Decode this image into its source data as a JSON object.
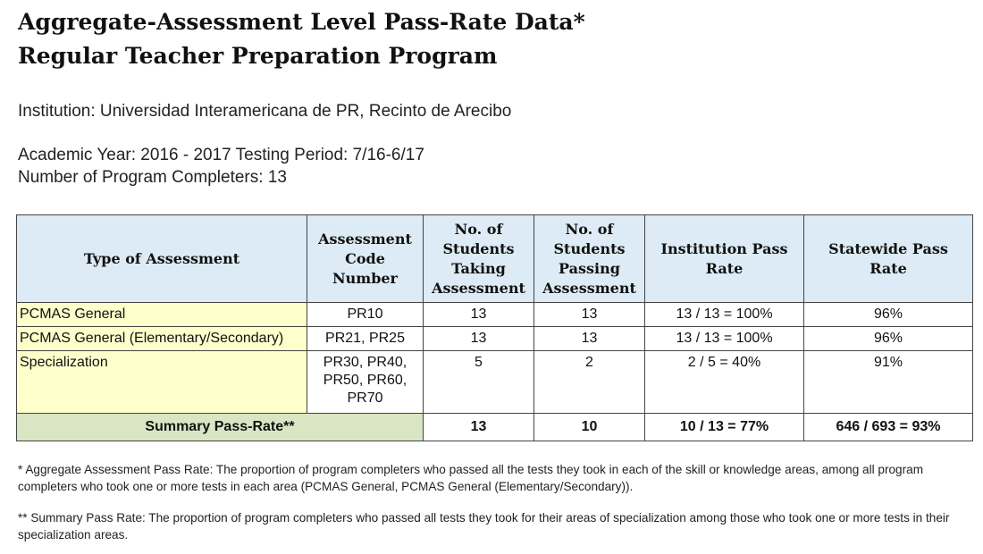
{
  "title": {
    "line1": "Aggregate-Assessment Level Pass-Rate Data*",
    "line2": "Regular Teacher Preparation Program"
  },
  "institution": "Institution: Universidad Interamericana de PR, Recinto de Arecibo",
  "academic_year": "Academic Year: 2016 - 2017 Testing Period: 7/16-6/17",
  "completers": "Number of Program Completers: 13",
  "table": {
    "headers": [
      "Type of Assessment",
      "Assessment Code Number",
      "No. of Students Taking Assessment",
      "No. of Students Passing Assessment",
      "Institution Pass Rate",
      "Statewide Pass Rate"
    ],
    "rows": [
      {
        "type": "PCMAS General",
        "code": "PR10",
        "taking": "13",
        "passing": "13",
        "inst_rate": "13 / 13 = 100%",
        "state_rate": "96%"
      },
      {
        "type": "PCMAS General (Elementary/Secondary)",
        "code": "PR21, PR25",
        "taking": "13",
        "passing": "13",
        "inst_rate": "13 / 13 = 100%",
        "state_rate": "96%"
      },
      {
        "type": "Specialization",
        "code": "PR30, PR40, PR50, PR60, PR70",
        "taking": "5",
        "passing": "2",
        "inst_rate": "2 / 5 = 40%",
        "state_rate": "91%"
      }
    ],
    "summary": {
      "label": "Summary Pass-Rate**",
      "taking": "13",
      "passing": "10",
      "inst_rate": "10 / 13 = 77%",
      "state_rate": "646 / 693 = 93%"
    }
  },
  "notes": {
    "note1": "* Aggregate Assessment Pass Rate: The proportion of program completers who passed all the tests they took in each of the skill or knowledge areas, among all program completers who took one or more tests in each area (PCMAS General, PCMAS General (Elementary/Secondary)).",
    "note2": "** Summary Pass Rate: The proportion of program completers who passed all tests they took for their areas of specialization among those who took one or more tests in their specialization areas."
  },
  "colors": {
    "header_bg": "#dcebf5",
    "type_col_bg": "#ffffcc",
    "summary_label_bg": "#d8e6c4"
  }
}
